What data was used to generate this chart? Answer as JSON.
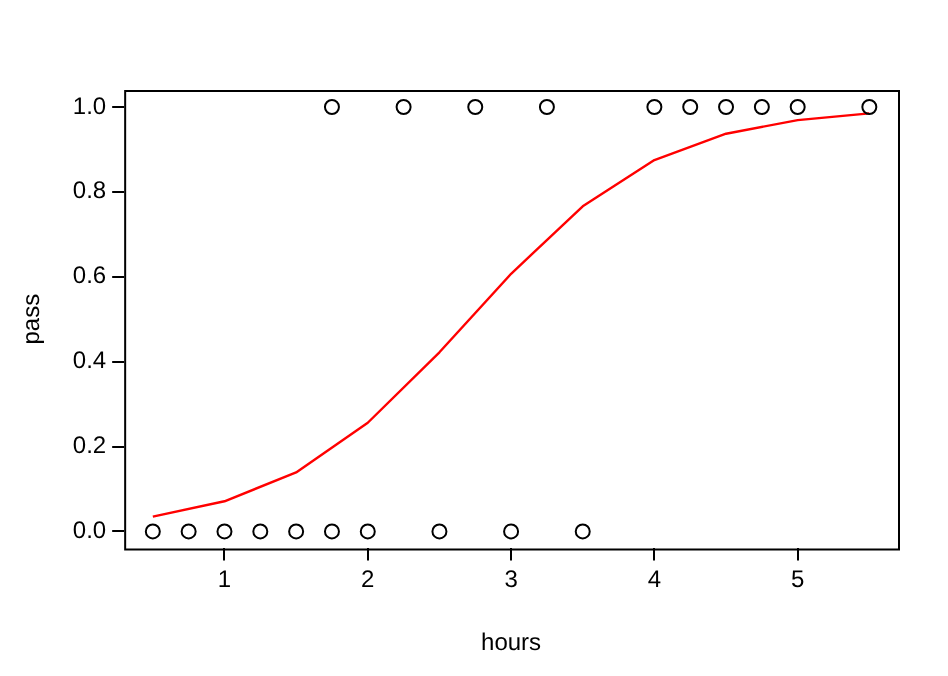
{
  "chart_data": {
    "type": "scatter",
    "xlabel": "hours",
    "ylabel": "pass",
    "grid": false,
    "legend": false,
    "xlim": [
      0.3,
      5.7
    ],
    "xticks": [
      1,
      2,
      3,
      4,
      5
    ],
    "ylim": [
      -0.04,
      1.04
    ],
    "yticks": [
      {
        "value": 0,
        "label": "0.0"
      },
      {
        "value": 0.2,
        "label": "0.2"
      },
      {
        "value": 0.4,
        "label": "0.4"
      },
      {
        "value": 0.6,
        "label": "0.6"
      },
      {
        "value": 0.8,
        "label": "0.8"
      },
      {
        "value": 1,
        "label": "1.0"
      }
    ],
    "series": [
      {
        "color": "#000000",
        "marker": "circle",
        "x": [
          0.5,
          0.75,
          1,
          1.25,
          1.5,
          1.75,
          1.75,
          2,
          2.25,
          2.5,
          2.75,
          3,
          3.25,
          3.5,
          4,
          4.25,
          4.5,
          4.75,
          5,
          5.5
        ],
        "values": [
          0,
          0,
          0,
          0,
          0,
          0,
          1,
          0,
          1,
          0,
          1,
          0,
          1,
          0,
          1,
          1,
          1,
          1,
          1,
          1
        ]
      },
      {
        "type": "line",
        "color": "#ff0000",
        "marker": "none",
        "line_style": "solid",
        "x": [
          0.5,
          1,
          1.5,
          2,
          2.5,
          3,
          3.5,
          4,
          4.5,
          5,
          5.5
        ],
        "values": [
          0.035,
          0.071,
          0.139,
          0.256,
          0.422,
          0.607,
          0.766,
          0.875,
          0.937,
          0.969,
          0.985
        ]
      }
    ]
  }
}
